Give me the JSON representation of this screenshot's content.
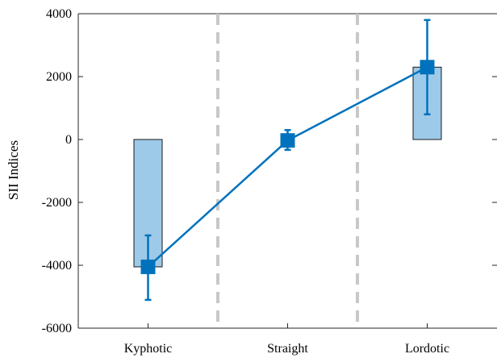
{
  "chart_data": {
    "type": "bar",
    "categories": [
      "Kyphotic",
      "Straight",
      "Lordotic"
    ],
    "ylabel": "SII Indices",
    "xlabel": "",
    "ylim": [
      -6000,
      4000
    ],
    "yticks": [
      4000,
      2000,
      0,
      -2000,
      -4000,
      -6000
    ],
    "grid": false,
    "bars": {
      "values": [
        -4050,
        0,
        2300
      ],
      "fill": "#9ecae9",
      "edge": "#1a1a1a"
    },
    "series": [
      {
        "type": "line",
        "values": [
          -4050,
          -30,
          2300
        ],
        "err_low": [
          -5100,
          -330,
          800
        ],
        "err_high": [
          -3050,
          300,
          3800
        ],
        "color": "#0072bd",
        "marker": "square"
      }
    ],
    "separators": {
      "color": "#c8c8c8",
      "style": "dashed"
    }
  }
}
